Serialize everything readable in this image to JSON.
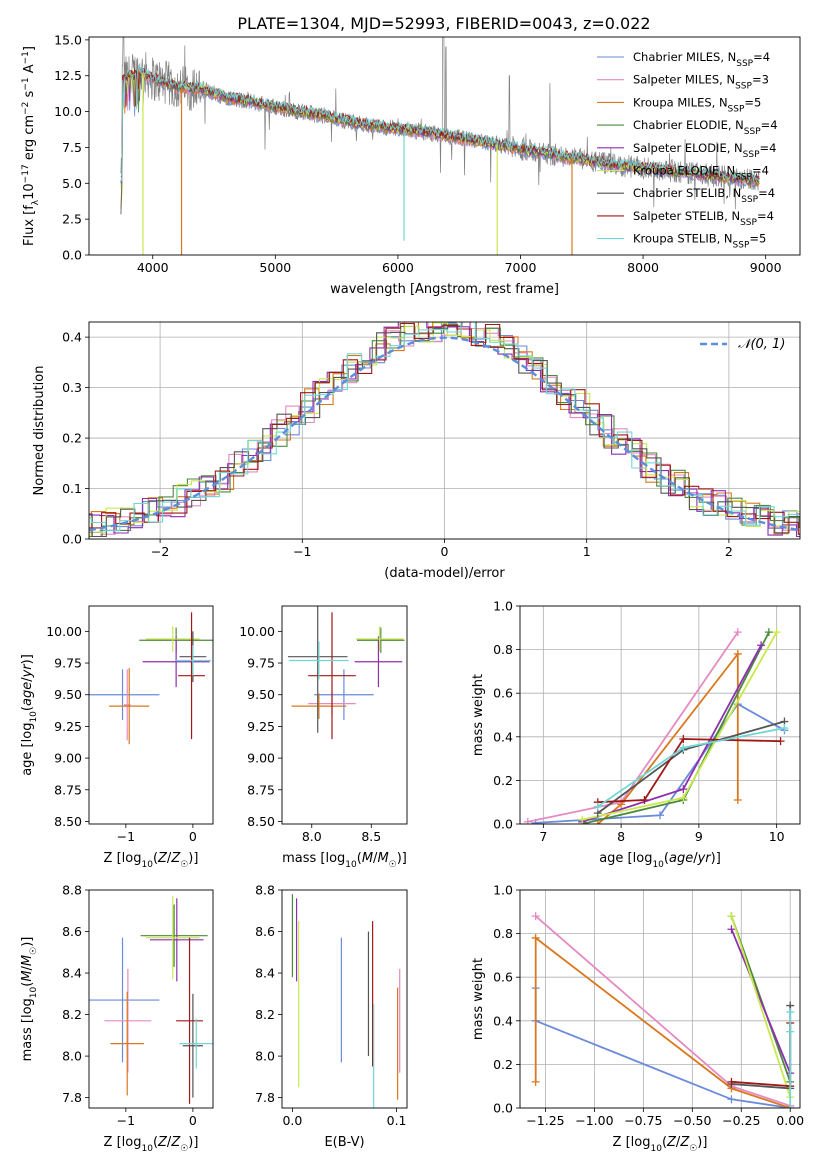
{
  "figure_title": "PLATE=1304, MJD=52993, FIBERID=0043, z=0.022",
  "legend_entries": [
    {
      "name": "Chabrier MILES",
      "n": "4",
      "color": "#6A8BDB"
    },
    {
      "name": "Salpeter MILES",
      "n": "3",
      "color": "#E58AC2"
    },
    {
      "name": "Kroupa MILES",
      "n": "5",
      "color": "#D9781F"
    },
    {
      "name": "Chabrier ELODIE",
      "n": "4",
      "color": "#4B8A3B"
    },
    {
      "name": "Salpeter ELODIE",
      "n": "4",
      "color": "#8E2FB0"
    },
    {
      "name": "Kroupa ELODIE",
      "n": "4",
      "color": "#C9E84E"
    },
    {
      "name": "Chabrier STELIB",
      "n": "4",
      "color": "#555555"
    },
    {
      "name": "Salpeter STELIB",
      "n": "4",
      "color": "#A01818"
    },
    {
      "name": "Kroupa STELIB",
      "n": "5",
      "color": "#72D6D6"
    }
  ],
  "nssp_sub": "SSP",
  "chart_data": [
    {
      "id": "spectrum",
      "type": "line",
      "title": "PLATE=1304, MJD=52993, FIBERID=0043, z=0.022",
      "xlabel": "wavelength [Angstrom, rest frame]",
      "ylabel": "Flux [f_λ 10^-17 erg cm^-2 s^-1 A^-1]",
      "xlim": [
        3480,
        9280
      ],
      "ylim": [
        0,
        15.2
      ],
      "xticks": [
        4000,
        5000,
        6000,
        7000,
        8000,
        9000
      ],
      "yticks": [
        0.0,
        2.5,
        5.0,
        7.5,
        10.0,
        12.5,
        15.0
      ],
      "grid": false,
      "legend": "top-right",
      "observed_continuum": [
        [
          3750,
          12.2
        ],
        [
          3900,
          12.8
        ],
        [
          4000,
          12.3
        ],
        [
          4200,
          11.7
        ],
        [
          4400,
          11.6
        ],
        [
          4600,
          11.0
        ],
        [
          4800,
          10.7
        ],
        [
          5000,
          10.3
        ],
        [
          5200,
          10.0
        ],
        [
          5400,
          9.7
        ],
        [
          5600,
          9.3
        ],
        [
          5800,
          9.0
        ],
        [
          6000,
          8.8
        ],
        [
          6200,
          8.6
        ],
        [
          6400,
          8.3
        ],
        [
          6600,
          8.0
        ],
        [
          6800,
          7.7
        ],
        [
          7000,
          7.4
        ],
        [
          7200,
          7.1
        ],
        [
          7400,
          6.8
        ],
        [
          7600,
          6.5
        ],
        [
          7800,
          6.2
        ],
        [
          8000,
          6.1
        ],
        [
          8200,
          5.9
        ],
        [
          8400,
          5.7
        ],
        [
          8600,
          5.5
        ],
        [
          8800,
          5.3
        ],
        [
          8900,
          5.2
        ]
      ],
      "model_dropouts": [
        [
          3920,
          0.0
        ],
        [
          4235,
          0.0
        ],
        [
          6050,
          1.0
        ],
        [
          6810,
          0.0
        ],
        [
          7420,
          0.0
        ]
      ]
    },
    {
      "id": "residuals",
      "type": "line",
      "xlabel": "(data-model)/error",
      "ylabel": "Normed distribution",
      "xlim": [
        -2.5,
        2.5
      ],
      "ylim": [
        0,
        0.43
      ],
      "xticks": [
        -2,
        -1,
        0,
        1,
        2
      ],
      "yticks": [
        0.0,
        0.1,
        0.2,
        0.3,
        0.4
      ],
      "grid": true,
      "legend": "top-right",
      "reference": {
        "name": "𝒩(0, 1)",
        "mean": 0,
        "sigma": 1,
        "color": "#5B8EDB"
      },
      "bin_width": 0.1,
      "histogram_sigma": 0.97
    },
    {
      "id": "age_vs_Z",
      "type": "scatter",
      "xlabel": "Z [log10(Z/Z☉)]",
      "ylabel": "age [log10(age/yr)]",
      "xlim": [
        -1.55,
        0.3
      ],
      "ylim": [
        8.48,
        10.2
      ],
      "xticks": [
        -1,
        0
      ],
      "yticks": [
        8.5,
        8.75,
        9.0,
        9.25,
        9.5,
        9.75,
        10.0
      ],
      "points": [
        {
          "x": -1.05,
          "y": 9.5,
          "xerr": 0.55,
          "yerr": 0.2,
          "color": "#6A8BDB"
        },
        {
          "x": -0.98,
          "y": 9.42,
          "xerr": 0.05,
          "yerr": 0.28,
          "color": "#E58AC2"
        },
        {
          "x": -0.95,
          "y": 9.41,
          "xerr": 0.3,
          "yerr": 0.3,
          "color": "#D9781F"
        },
        {
          "x": -0.25,
          "y": 9.93,
          "xerr": 0.55,
          "yerr": 0.1,
          "color": "#4B8A3B"
        },
        {
          "x": -0.25,
          "y": 9.76,
          "xerr": 0.5,
          "yerr": 0.2,
          "color": "#8E2FB0"
        },
        {
          "x": -0.3,
          "y": 9.94,
          "xerr": 0.4,
          "yerr": 0.1,
          "color": "#C9E84E"
        },
        {
          "x": 0.0,
          "y": 9.8,
          "xerr": 0.2,
          "yerr": 0.2,
          "color": "#555555"
        },
        {
          "x": -0.02,
          "y": 9.65,
          "xerr": 0.2,
          "yerr": 0.5,
          "color": "#A01818"
        },
        {
          "x": 0.0,
          "y": 9.77,
          "xerr": 0.27,
          "yerr": 0.12,
          "color": "#72D6D6"
        }
      ]
    },
    {
      "id": "age_vs_mass",
      "type": "scatter",
      "xlabel": "mass [log10(M/M☉)]",
      "ylabel": "",
      "xlim": [
        7.75,
        8.8
      ],
      "ylim": [
        8.48,
        10.2
      ],
      "xticks": [
        8.0,
        8.5
      ],
      "yticks": [
        8.5,
        8.75,
        9.0,
        9.25,
        9.5,
        9.75,
        10.0
      ],
      "points": [
        {
          "x": 8.27,
          "y": 9.5,
          "xerr": 0.25,
          "yerr": 0.2,
          "color": "#6A8BDB"
        },
        {
          "x": 8.17,
          "y": 9.43,
          "xerr": 0.2,
          "yerr": 0.1,
          "color": "#E58AC2"
        },
        {
          "x": 8.06,
          "y": 9.41,
          "xerr": 0.23,
          "yerr": 0.1,
          "color": "#D9781F"
        },
        {
          "x": 8.58,
          "y": 9.93,
          "xerr": 0.2,
          "yerr": 0.1,
          "color": "#4B8A3B"
        },
        {
          "x": 8.56,
          "y": 9.76,
          "xerr": 0.2,
          "yerr": 0.2,
          "color": "#8E2FB0"
        },
        {
          "x": 8.57,
          "y": 9.94,
          "xerr": 0.2,
          "yerr": 0.1,
          "color": "#C9E84E"
        },
        {
          "x": 8.05,
          "y": 9.8,
          "xerr": 0.25,
          "yerr": 0.6,
          "color": "#555555"
        },
        {
          "x": 8.17,
          "y": 9.65,
          "xerr": 0.2,
          "yerr": 0.5,
          "color": "#A01818"
        },
        {
          "x": 8.06,
          "y": 9.77,
          "xerr": 0.25,
          "yerr": 0.15,
          "color": "#72D6D6"
        }
      ]
    },
    {
      "id": "weight_vs_age",
      "type": "line",
      "xlabel": "age [log10(age/yr)]",
      "ylabel": "mass weight",
      "xlim": [
        6.7,
        10.3
      ],
      "ylim": [
        0,
        1.0
      ],
      "xticks": [
        7,
        8,
        9,
        10
      ],
      "yticks": [
        0.0,
        0.2,
        0.4,
        0.6,
        0.8,
        1.0
      ],
      "grid": true,
      "series": [
        {
          "color": "#6A8BDB",
          "points": [
            [
              6.9,
              0.005
            ],
            [
              8.5,
              0.04
            ],
            [
              9.5,
              0.55
            ],
            [
              10.1,
              0.43
            ]
          ]
        },
        {
          "color": "#E58AC2",
          "points": [
            [
              6.8,
              0.01
            ],
            [
              8.0,
              0.1
            ],
            [
              9.5,
              0.88
            ]
          ]
        },
        {
          "color": "#D9781F",
          "points": [
            [
              7.7,
              0.0
            ],
            [
              8.0,
              0.09
            ],
            [
              9.5,
              0.78
            ],
            [
              9.5,
              0.11
            ]
          ]
        },
        {
          "color": "#4B8A3B",
          "points": [
            [
              7.5,
              0.0
            ],
            [
              8.8,
              0.11
            ],
            [
              9.9,
              0.88
            ]
          ]
        },
        {
          "color": "#8E2FB0",
          "points": [
            [
              7.5,
              0.01
            ],
            [
              8.8,
              0.16
            ],
            [
              9.8,
              0.82
            ]
          ]
        },
        {
          "color": "#C9E84E",
          "points": [
            [
              7.5,
              0.02
            ],
            [
              8.8,
              0.12
            ],
            [
              10.0,
              0.88
            ]
          ]
        },
        {
          "color": "#555555",
          "points": [
            [
              7.7,
              0.05
            ],
            [
              8.8,
              0.34
            ],
            [
              10.1,
              0.47
            ]
          ]
        },
        {
          "color": "#A01818",
          "points": [
            [
              7.7,
              0.1
            ],
            [
              8.3,
              0.11
            ],
            [
              8.8,
              0.39
            ],
            [
              10.05,
              0.38
            ]
          ]
        },
        {
          "color": "#72D6D6",
          "points": [
            [
              7.7,
              0.08
            ],
            [
              8.8,
              0.35
            ],
            [
              10.1,
              0.44
            ]
          ]
        }
      ]
    },
    {
      "id": "mass_vs_Z",
      "type": "scatter",
      "xlabel": "Z [log10(Z/Z☉)]",
      "ylabel": "mass [log10(M/M☉)]",
      "xlim": [
        -1.55,
        0.3
      ],
      "ylim": [
        7.75,
        8.8
      ],
      "xticks": [
        -1,
        0
      ],
      "yticks": [
        7.8,
        8.0,
        8.2,
        8.4,
        8.6,
        8.8
      ],
      "points": [
        {
          "x": -1.05,
          "y": 8.27,
          "xerr": 0.55,
          "yerr": 0.3,
          "color": "#6A8BDB"
        },
        {
          "x": -0.97,
          "y": 8.17,
          "xerr": 0.35,
          "yerr": 0.25,
          "color": "#E58AC2"
        },
        {
          "x": -0.98,
          "y": 8.06,
          "xerr": 0.25,
          "yerr": 0.25,
          "color": "#D9781F"
        },
        {
          "x": -0.28,
          "y": 8.58,
          "xerr": 0.5,
          "yerr": 0.15,
          "color": "#4B8A3B"
        },
        {
          "x": -0.24,
          "y": 8.56,
          "xerr": 0.4,
          "yerr": 0.2,
          "color": "#8E2FB0"
        },
        {
          "x": -0.3,
          "y": 8.57,
          "xerr": 0.4,
          "yerr": 0.2,
          "color": "#C9E84E"
        },
        {
          "x": 0.0,
          "y": 8.05,
          "xerr": 0.15,
          "yerr": 0.25,
          "color": "#555555"
        },
        {
          "x": -0.05,
          "y": 8.17,
          "xerr": 0.2,
          "yerr": 0.4,
          "color": "#A01818"
        },
        {
          "x": 0.05,
          "y": 8.06,
          "xerr": 0.25,
          "yerr": 0.12,
          "color": "#72D6D6"
        }
      ]
    },
    {
      "id": "mass_vs_ebv",
      "type": "scatter",
      "xlabel": "E(B-V)",
      "ylabel": "",
      "xlim": [
        -0.01,
        0.11
      ],
      "ylim": [
        7.75,
        8.8
      ],
      "xticks": [
        0.0,
        0.1
      ],
      "yticks": [
        7.8,
        8.0,
        8.2,
        8.4,
        8.6,
        8.8
      ],
      "points": [
        {
          "x": 0.047,
          "y": 8.27,
          "yerr": 0.3,
          "color": "#6A8BDB"
        },
        {
          "x": 0.103,
          "y": 8.17,
          "yerr": 0.25,
          "color": "#E58AC2"
        },
        {
          "x": 0.101,
          "y": 8.06,
          "yerr": 0.27,
          "color": "#D9781F"
        },
        {
          "x": 0.0,
          "y": 8.58,
          "yerr": 0.2,
          "color": "#4B8A3B"
        },
        {
          "x": 0.004,
          "y": 8.56,
          "yerr": 0.2,
          "color": "#8E2FB0"
        },
        {
          "x": 0.006,
          "y": 8.25,
          "yerr": 0.4,
          "color": "#C9E84E"
        },
        {
          "x": 0.073,
          "y": 8.3,
          "yerr": 0.3,
          "color": "#555555"
        },
        {
          "x": 0.077,
          "y": 8.3,
          "yerr": 0.35,
          "color": "#A01818"
        },
        {
          "x": 0.078,
          "y": 8.0,
          "yerr": 0.25,
          "color": "#72D6D6"
        }
      ]
    },
    {
      "id": "weight_vs_Z",
      "type": "line",
      "xlabel": "Z [log10(Z/Z☉)]",
      "ylabel": "mass weight",
      "xlim": [
        -1.38,
        0.05
      ],
      "ylim": [
        0,
        1.0
      ],
      "xticks": [
        -1.25,
        -1.0,
        -0.75,
        -0.5,
        -0.25,
        0.0
      ],
      "yticks": [
        0.0,
        0.2,
        0.4,
        0.6,
        0.8,
        1.0
      ],
      "grid": true,
      "series": [
        {
          "color": "#6A8BDB",
          "points": [
            [
              -1.3,
              0.55
            ],
            [
              -1.3,
              0.4
            ],
            [
              -0.3,
              0.04
            ],
            [
              0.0,
              0.0
            ]
          ]
        },
        {
          "color": "#E58AC2",
          "points": [
            [
              -1.3,
              0.88
            ],
            [
              -0.3,
              0.1
            ],
            [
              0.0,
              0.01
            ]
          ]
        },
        {
          "color": "#D9781F",
          "points": [
            [
              -1.3,
              0.12
            ],
            [
              -1.3,
              0.78
            ],
            [
              -0.3,
              0.09
            ],
            [
              0.0,
              0.0
            ]
          ]
        },
        {
          "color": "#4B8A3B",
          "points": [
            [
              -0.3,
              0.88
            ],
            [
              0.0,
              0.12
            ]
          ]
        },
        {
          "color": "#8E2FB0",
          "points": [
            [
              -0.3,
              0.82
            ],
            [
              0.0,
              0.16
            ]
          ]
        },
        {
          "color": "#C9E84E",
          "points": [
            [
              -0.3,
              0.88
            ],
            [
              0.0,
              0.05
            ]
          ]
        },
        {
          "color": "#555555",
          "points": [
            [
              -0.3,
              0.11
            ],
            [
              0.0,
              0.09
            ],
            [
              0.0,
              0.47
            ]
          ]
        },
        {
          "color": "#A01818",
          "points": [
            [
              -0.3,
              0.12
            ],
            [
              0.0,
              0.1
            ],
            [
              0.0,
              0.39
            ]
          ]
        },
        {
          "color": "#72D6D6",
          "points": [
            [
              0.0,
              0.0
            ],
            [
              0.0,
              0.44
            ],
            [
              0.0,
              0.35
            ]
          ]
        }
      ]
    }
  ]
}
